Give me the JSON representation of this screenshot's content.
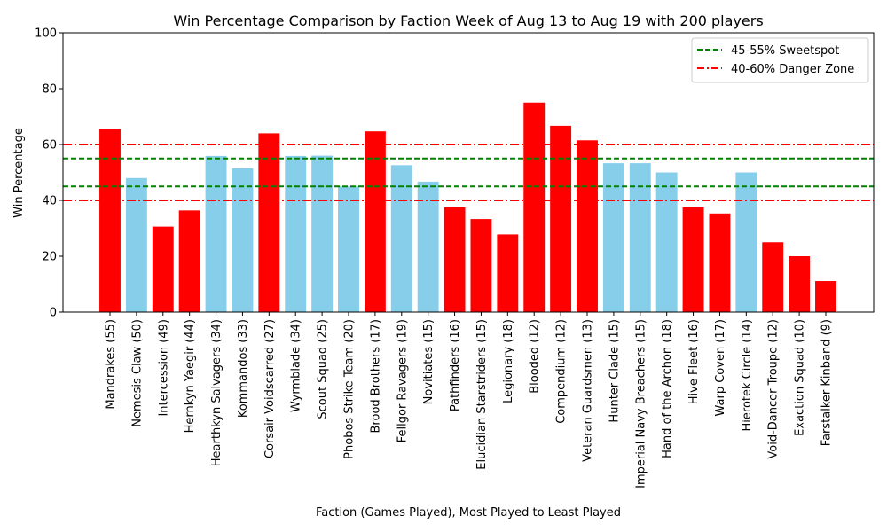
{
  "chart_data": {
    "type": "bar",
    "title": "Win Percentage Comparison by Faction Week of Aug 13 to Aug 19 with 200 players",
    "xlabel": "Faction (Games Played), Most Played to Least Played",
    "ylabel": "Win Percentage",
    "ylim": [
      0,
      100
    ],
    "yticks": [
      0,
      20,
      40,
      60,
      80,
      100
    ],
    "grid": false,
    "legend_position": "top-right",
    "colors": {
      "in_range": "#87ceeb",
      "out_of_range": "#ff0000",
      "sweetspot_line": "#008000",
      "danger_line": "#ff0000"
    },
    "categories": [
      "Mandrakes (55)",
      "Nemesis Claw (50)",
      "Intercession (49)",
      "Hernkyn Yaegir (44)",
      "Hearthkyn Salvagers (34)",
      "Kommandos (33)",
      "Corsair Voidscarred (27)",
      "Wyrmblade (34)",
      "Scout Squad (25)",
      "Phobos Strike Team (20)",
      "Brood Brothers (17)",
      "Fellgor Ravagers (19)",
      "Novitiates (15)",
      "Pathfinders (16)",
      "Elucidian Starstriders (15)",
      "Legionary (18)",
      "Blooded (12)",
      "Compendium (12)",
      "Veteran Guardsmen (13)",
      "Hunter Clade (15)",
      "Imperial Navy Breachers (15)",
      "Hand of the Archon (18)",
      "Hive Fleet (16)",
      "Warp Coven (17)",
      "Hierotek Circle (14)",
      "Void-Dancer Troupe (12)",
      "Exaction Squad (10)",
      "Farstalker Kinband (9)"
    ],
    "values": [
      65.5,
      48.0,
      30.6,
      36.4,
      55.9,
      51.5,
      64.0,
      55.9,
      56.0,
      45.0,
      64.7,
      52.6,
      46.7,
      37.5,
      33.3,
      27.8,
      75.0,
      66.7,
      61.5,
      53.3,
      53.3,
      50.0,
      37.5,
      35.3,
      50.0,
      25.0,
      20.0,
      11.1
    ],
    "reference_lines": [
      {
        "name": "45-55% Sweetspot",
        "values": [
          45,
          55
        ],
        "style": "dashed",
        "color": "#008000"
      },
      {
        "name": "40-60% Danger Zone",
        "values": [
          40,
          60
        ],
        "style": "dashdot",
        "color": "#ff0000"
      }
    ],
    "legend": [
      "45-55% Sweetspot",
      "40-60% Danger Zone"
    ]
  }
}
